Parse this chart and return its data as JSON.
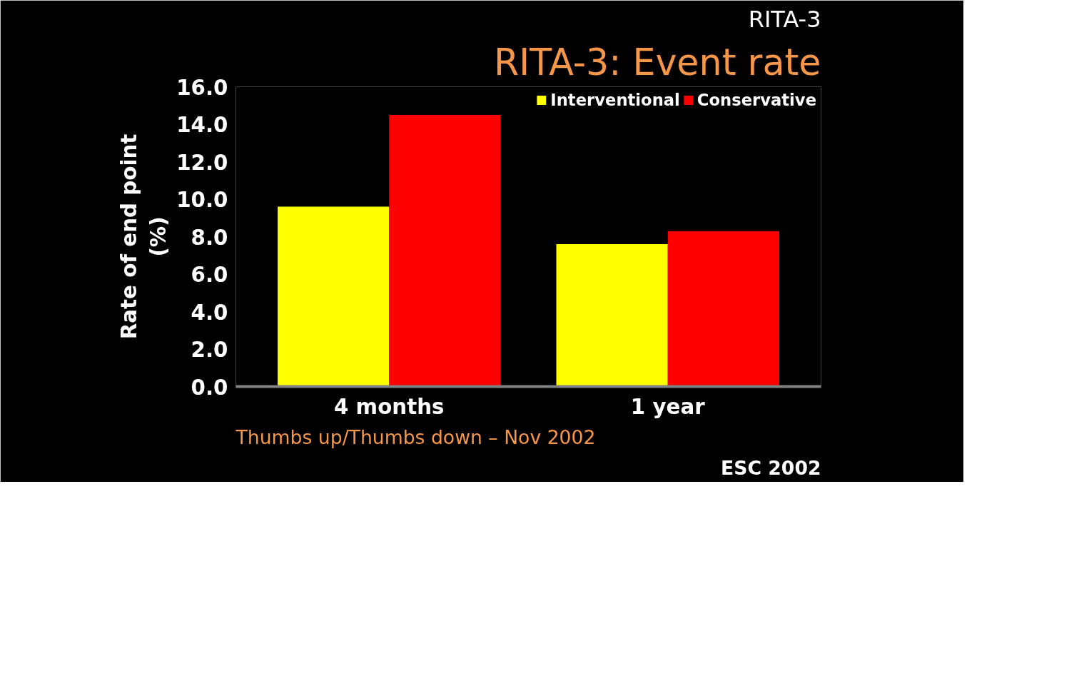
{
  "chart_data": {
    "type": "bar",
    "title": "RITA-3: Event rate",
    "ylabel": "Rate of end point\n(%)",
    "categories": [
      "4 months",
      "1 year"
    ],
    "series": [
      {
        "name": "Interventional",
        "color": "#ffff00",
        "values": [
          9.6,
          7.6
        ]
      },
      {
        "name": "Conservative",
        "color": "#ff0000",
        "values": [
          14.5,
          8.3
        ]
      }
    ],
    "ylim": [
      0,
      16
    ],
    "yticks": [
      {
        "value": 0,
        "label": "0.0"
      },
      {
        "value": 2,
        "label": "2.0"
      },
      {
        "value": 4,
        "label": "4.0"
      },
      {
        "value": 6,
        "label": "6.0"
      },
      {
        "value": 8,
        "label": "8.0"
      },
      {
        "value": 10,
        "label": "10.0"
      },
      {
        "value": 12,
        "label": "12.0"
      },
      {
        "value": 14,
        "label": "14.0"
      },
      {
        "value": 16,
        "label": "16.0"
      }
    ],
    "grid": false,
    "legend": "top right",
    "annotations": [
      "RITA-3",
      "ESC 2002",
      "Thumbs up/Thumbs down – Nov 2002"
    ]
  }
}
